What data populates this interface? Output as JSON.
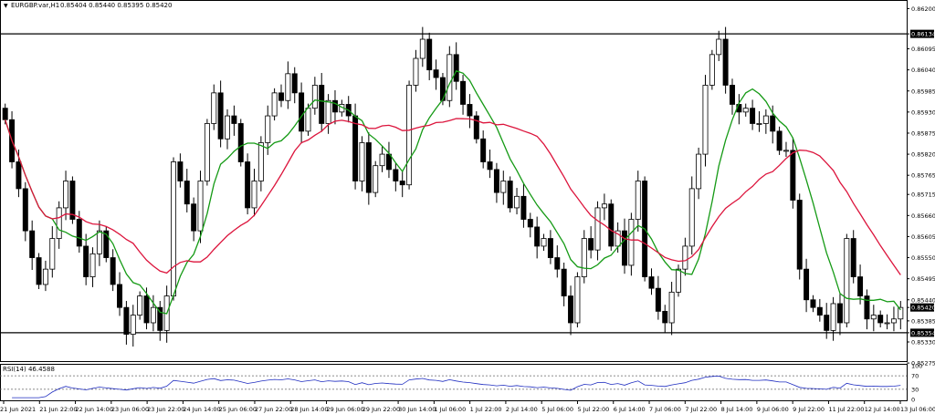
{
  "header": {
    "arrow": "▼",
    "symbol": "EURGBP.var,H1",
    "ohlc": "0.85404 0.85440 0.85395 0.85420"
  },
  "rsi": {
    "label": "RSI(14) 46.4588",
    "levels": [
      "100",
      "70",
      "30",
      "0"
    ],
    "ylim": [
      0,
      100
    ],
    "upper_level": 70,
    "lower_level": 30
  },
  "colors": {
    "bull": "#000000",
    "bear": "#000000",
    "ma_fast": "#159a15",
    "ma_slow": "#dc143c",
    "rsi_line": "#1e2cc0",
    "price_tag_bg": "#000000",
    "price_tag_text": "#ffffff",
    "level_line": "#000000"
  },
  "chart_data": {
    "type": "candlestick",
    "ylim": [
      0.8528,
      0.8622
    ],
    "price_axis": [
      "0.86200",
      "0.86134",
      "0.86095",
      "0.86040",
      "0.85985",
      "0.85930",
      "0.85875",
      "0.85820",
      "0.85765",
      "0.85715",
      "0.85660",
      "0.85605",
      "0.85550",
      "0.85495",
      "0.85440",
      "0.85420",
      "0.85385",
      "0.85354",
      "0.85330",
      "0.85275"
    ],
    "tagged_prices": [
      "0.86134",
      "0.85420",
      "0.85354"
    ],
    "x_axis": [
      "21 Jun 2021",
      "21 Jun 22:00",
      "22 Jun 14:00",
      "23 Jun 06:00",
      "23 Jun 22:00",
      "24 Jun 14:00",
      "25 Jun 06:00",
      "27 Jun 22:00",
      "28 Jun 14:00",
      "29 Jun 06:00",
      "29 Jun 22:00",
      "30 Jun 14:00",
      "1 Jul 06:00",
      "1 Jul 22:00",
      "2 Jul 14:00",
      "5 Jul 06:00",
      "5 Jul 22:00",
      "6 Jul 14:00",
      "7 Jul 06:00",
      "7 Jul 22:00",
      "8 Jul 14:00",
      "9 Jul 06:00",
      "9 Jul 22:00",
      "11 Jul 22:00",
      "12 Jul 14:00",
      "13 Jul 06:00"
    ],
    "horizontal_levels": [
      0.86134,
      0.85354
    ],
    "series": [
      {
        "name": "EURGBP.var,H1",
        "close": [
          0.8591,
          0.858,
          0.8573,
          0.8562,
          0.8555,
          0.8548,
          0.8552,
          0.856,
          0.8568,
          0.8575,
          0.8565,
          0.8558,
          0.855,
          0.8556,
          0.8562,
          0.8555,
          0.8548,
          0.8542,
          0.8535,
          0.854,
          0.8545,
          0.8538,
          0.8542,
          0.8536,
          0.8545,
          0.858,
          0.8575,
          0.8569,
          0.8562,
          0.8575,
          0.859,
          0.8598,
          0.8586,
          0.8592,
          0.859,
          0.858,
          0.8568,
          0.8575,
          0.8585,
          0.8592,
          0.8598,
          0.8596,
          0.8603,
          0.8598,
          0.8588,
          0.8594,
          0.86,
          0.859,
          0.8596,
          0.8593,
          0.8595,
          0.8592,
          0.8575,
          0.8585,
          0.8572,
          0.8579,
          0.8582,
          0.8578,
          0.8575,
          0.8574,
          0.86,
          0.8607,
          0.8612,
          0.8604,
          0.8602,
          0.8596,
          0.8608,
          0.8601,
          0.8595,
          0.8592,
          0.8586,
          0.858,
          0.8578,
          0.8572,
          0.8575,
          0.8568,
          0.8571,
          0.8565,
          0.8563,
          0.8558,
          0.856,
          0.8555,
          0.8552,
          0.8545,
          0.8538,
          0.855,
          0.856,
          0.8557,
          0.8568,
          0.8569,
          0.8558,
          0.8562,
          0.8553,
          0.8565,
          0.8575,
          0.855,
          0.8547,
          0.8541,
          0.8538,
          0.8546,
          0.8552,
          0.8558,
          0.8573,
          0.8582,
          0.86,
          0.8608,
          0.8612,
          0.86,
          0.8595,
          0.8593,
          0.8594,
          0.859,
          0.859,
          0.8592,
          0.8588,
          0.8583,
          0.8583,
          0.857,
          0.8552,
          0.8544,
          0.8542,
          0.854,
          0.8536,
          0.8543,
          0.8538,
          0.856,
          0.855,
          0.8545,
          0.8539,
          0.854,
          0.8538,
          0.8538,
          0.8539,
          0.8542
        ]
      },
      {
        "name": "Moving Average (fast)"
      },
      {
        "name": "Moving Average (slow)"
      }
    ]
  }
}
